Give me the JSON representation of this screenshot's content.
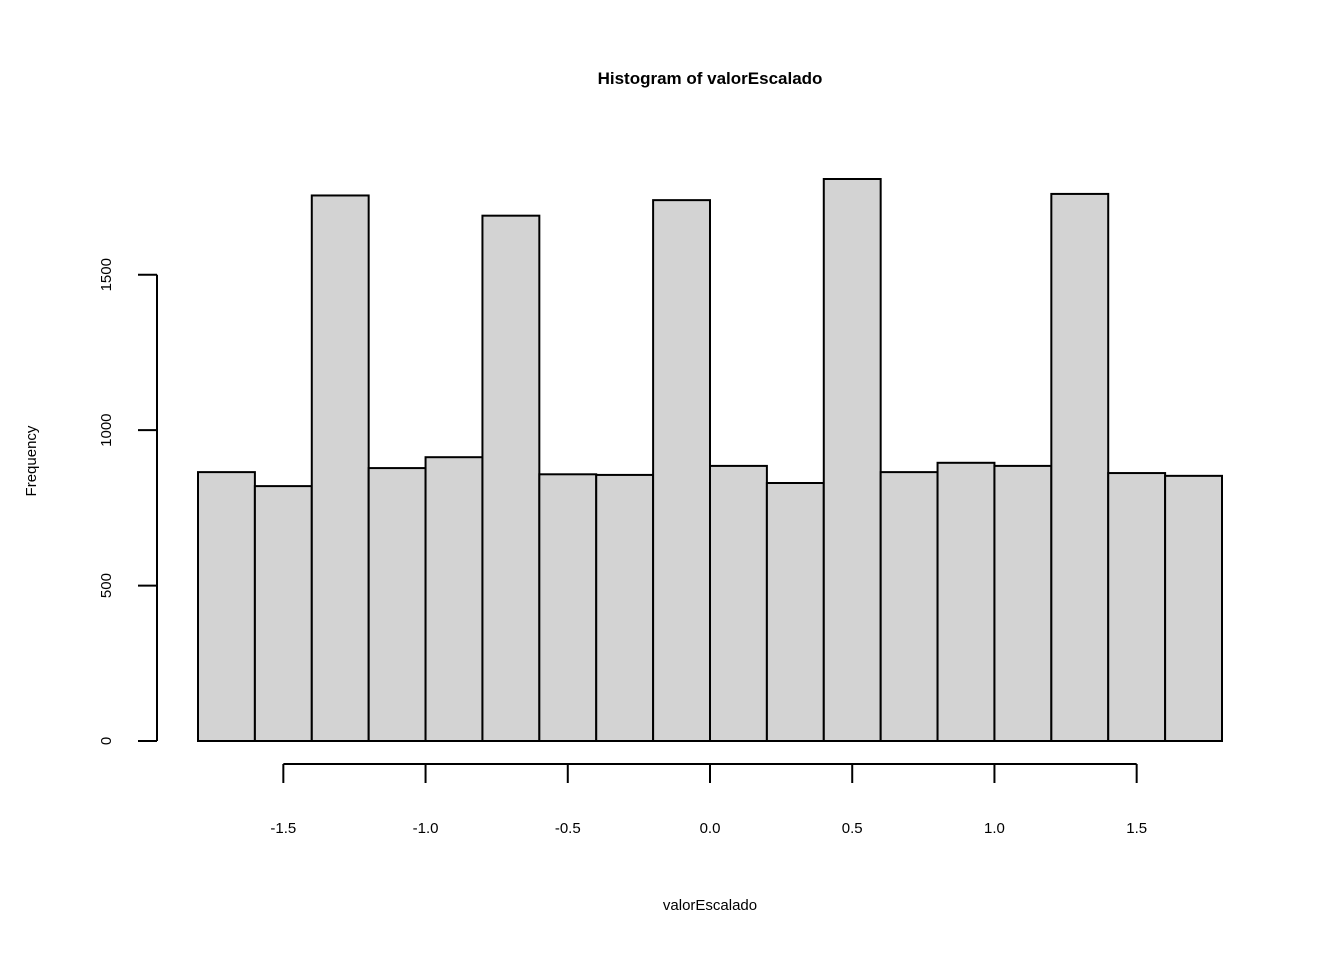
{
  "chart_data": {
    "type": "bar",
    "title": "Histogram of valorEscalado",
    "xlabel": "valorEscalado",
    "ylabel": "Frequency",
    "bins": [
      [
        -1.8,
        -1.6
      ],
      [
        -1.6,
        -1.4
      ],
      [
        -1.4,
        -1.2
      ],
      [
        -1.2,
        -1.0
      ],
      [
        -1.0,
        -0.8
      ],
      [
        -0.8,
        -0.6
      ],
      [
        -0.6,
        -0.4
      ],
      [
        -0.4,
        -0.2
      ],
      [
        -0.2,
        0.0
      ],
      [
        0.0,
        0.2
      ],
      [
        0.2,
        0.4
      ],
      [
        0.4,
        0.6
      ],
      [
        0.6,
        0.8
      ],
      [
        0.8,
        1.0
      ],
      [
        1.0,
        1.2
      ],
      [
        1.2,
        1.4
      ],
      [
        1.4,
        1.6
      ],
      [
        1.6,
        1.8
      ]
    ],
    "values": [
      865,
      820,
      1755,
      878,
      913,
      1690,
      858,
      856,
      1740,
      885,
      830,
      1808,
      865,
      895,
      885,
      1760,
      862,
      853
    ],
    "xlim": [
      -1.8,
      1.8
    ],
    "ylim": [
      0,
      1808
    ],
    "x_ticks": [
      -1.5,
      -1.0,
      -0.5,
      0.0,
      0.5,
      1.0,
      1.5
    ],
    "x_tick_labels": [
      "-1.5",
      "-1.0",
      "-0.5",
      "0.0",
      "0.5",
      "1.0",
      "1.5"
    ],
    "y_ticks": [
      0,
      500,
      1000,
      1500
    ],
    "y_tick_labels": [
      "0",
      "500",
      "1000",
      "1500"
    ],
    "bar_fill": "#d3d3d3",
    "bar_stroke": "#000000",
    "grid": false
  }
}
